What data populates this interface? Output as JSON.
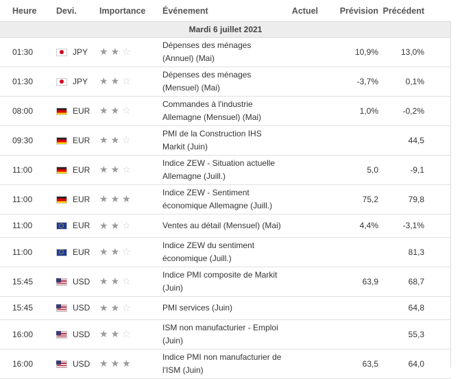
{
  "headers": {
    "time": "Heure",
    "currency": "Devi.",
    "importance": "Importance",
    "event": "Événement",
    "actual": "Actuel",
    "forecast": "Prévision",
    "previous": "Précédent"
  },
  "date_row": "Mardi 6 juillet 2021",
  "rows": [
    {
      "time": "01:30",
      "flag": "jp",
      "currency": "JPY",
      "stars": 2,
      "event": "Dépenses des ménages (Annuel) (Mai)",
      "actual": "",
      "forecast": "10,9%",
      "previous": "13,0%"
    },
    {
      "time": "01:30",
      "flag": "jp",
      "currency": "JPY",
      "stars": 2,
      "event": "Dépenses des ménages (Mensuel) (Mai)",
      "actual": "",
      "forecast": "-3,7%",
      "previous": "0,1%"
    },
    {
      "time": "08:00",
      "flag": "de",
      "currency": "EUR",
      "stars": 2,
      "event": "Commandes à l'industrie Allemagne (Mensuel) (Mai)",
      "actual": "",
      "forecast": "1,0%",
      "previous": "-0,2%"
    },
    {
      "time": "09:30",
      "flag": "de",
      "currency": "EUR",
      "stars": 2,
      "event": "PMI de la Construction IHS Markit (Juin)",
      "actual": "",
      "forecast": "",
      "previous": "44,5"
    },
    {
      "time": "11:00",
      "flag": "de",
      "currency": "EUR",
      "stars": 2,
      "event": "Indice ZEW - Situation actuelle Allemagne (Juill.)",
      "actual": "",
      "forecast": "5,0",
      "previous": "-9,1"
    },
    {
      "time": "11:00",
      "flag": "de",
      "currency": "EUR",
      "stars": 3,
      "event": "Indice ZEW - Sentiment économique Allemagne (Juill.)",
      "actual": "",
      "forecast": "75,2",
      "previous": "79,8"
    },
    {
      "time": "11:00",
      "flag": "eu",
      "currency": "EUR",
      "stars": 2,
      "event": "Ventes au détail (Mensuel) (Mai)",
      "actual": "",
      "forecast": "4,4%",
      "previous": "-3,1%",
      "short": true
    },
    {
      "time": "11:00",
      "flag": "eu",
      "currency": "EUR",
      "stars": 2,
      "event": "Indice ZEW du sentiment économique (Juill.)",
      "actual": "",
      "forecast": "",
      "previous": "81,3"
    },
    {
      "time": "15:45",
      "flag": "us",
      "currency": "USD",
      "stars": 2,
      "event": "Indice PMI composite de Markit (Juin)",
      "actual": "",
      "forecast": "63,9",
      "previous": "68,7"
    },
    {
      "time": "15:45",
      "flag": "us",
      "currency": "USD",
      "stars": 2,
      "event": "PMI services (Juin)",
      "actual": "",
      "forecast": "",
      "previous": "64,8",
      "short": true
    },
    {
      "time": "16:00",
      "flag": "us",
      "currency": "USD",
      "stars": 2,
      "event": "ISM non manufacturier - Emploi (Juin)",
      "actual": "",
      "forecast": "",
      "previous": "55,3"
    },
    {
      "time": "16:00",
      "flag": "us",
      "currency": "USD",
      "stars": 3,
      "event": "Indice PMI non manufacturier de l'ISM (Juin)",
      "actual": "",
      "forecast": "63,5",
      "previous": "64,0"
    }
  ]
}
